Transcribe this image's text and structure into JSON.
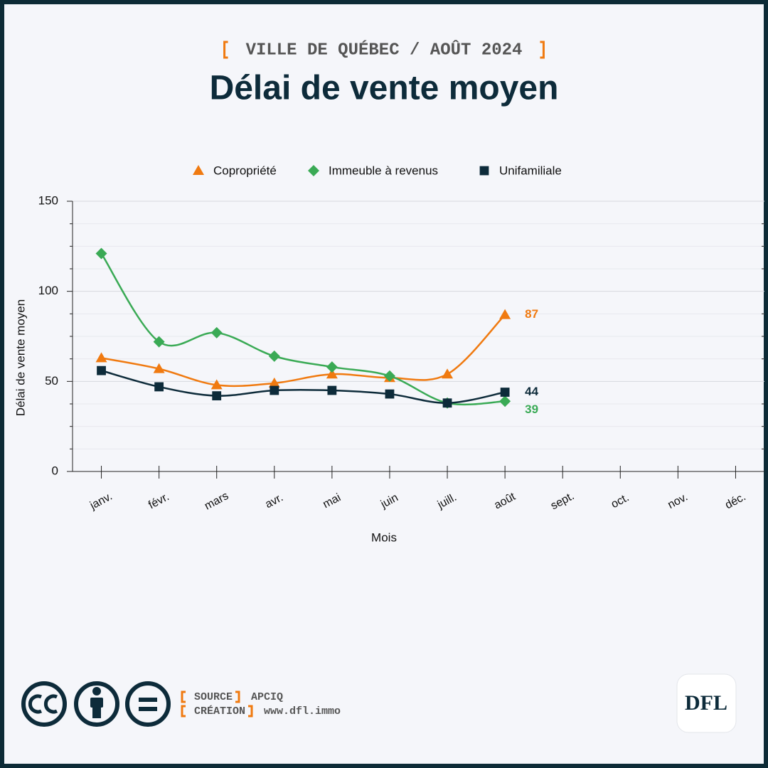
{
  "subtitle": "VILLE DE QUÉBEC / AOÛT 2024",
  "footer": {
    "source_label": "SOURCE",
    "source": "APCIQ",
    "creation_label": "CRÉATION",
    "creation": "www.dfl.immo",
    "logo": "DFL"
  },
  "chart_data": {
    "type": "line",
    "title": "Délai de vente moyen",
    "x_label": "Mois",
    "y_label": "Délai de vente moyen",
    "categories": [
      "janv.",
      "févr.",
      "mars",
      "avr.",
      "mai",
      "juin",
      "juill.",
      "août",
      "sept.",
      "oct.",
      "nov.",
      "déc."
    ],
    "series": [
      {
        "name": "Copropriété",
        "color": "#f07a10",
        "marker": "triangle",
        "values": [
          63,
          57,
          48,
          49,
          54,
          52,
          54,
          87,
          null,
          null,
          null,
          null
        ]
      },
      {
        "name": "Immeuble à revenus",
        "color": "#3aaa55",
        "marker": "diamond",
        "values": [
          121,
          72,
          77,
          64,
          58,
          53,
          38,
          39,
          null,
          null,
          null,
          null
        ]
      },
      {
        "name": "Unifamiliale",
        "color": "#0d2b3a",
        "marker": "square",
        "values": [
          56,
          47,
          42,
          45,
          45,
          43,
          38,
          44,
          null,
          null,
          null,
          null
        ]
      }
    ],
    "ylim": [
      0,
      150
    ],
    "yticks": [
      0,
      50,
      100,
      150
    ],
    "grid": true,
    "smooth": true,
    "end_labels": true,
    "legend": "top"
  }
}
